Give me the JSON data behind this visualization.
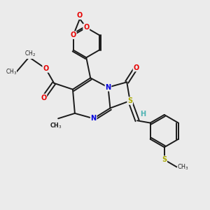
{
  "bg": "#ebebeb",
  "bond_color": "#1a1a1a",
  "bw": 1.4,
  "atom_colors": {
    "O": "#e60000",
    "N": "#0000dd",
    "S": "#aaaa00",
    "H": "#4db3b3",
    "C": "#1a1a1a"
  },
  "fs": 7.0
}
